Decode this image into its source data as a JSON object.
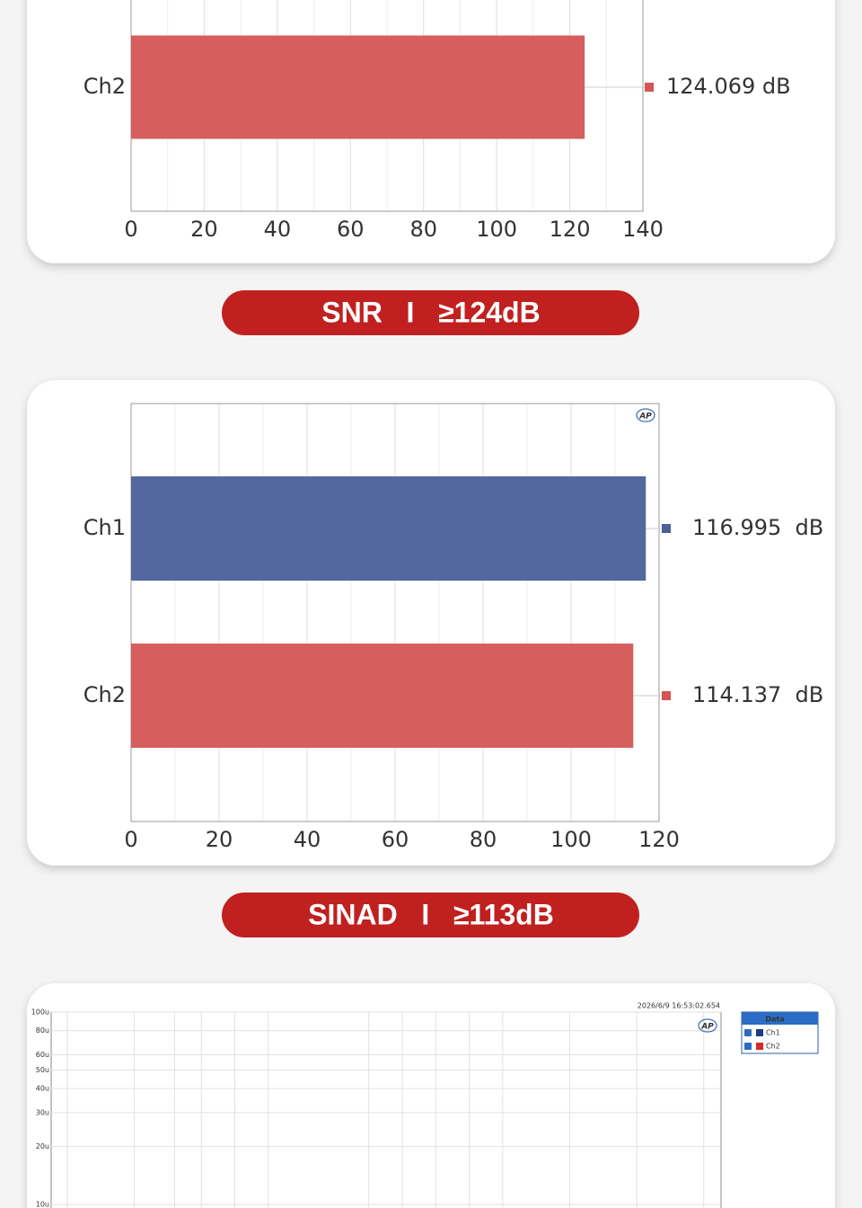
{
  "chart_data": [
    {
      "type": "bar",
      "orientation": "horizontal",
      "categories": [
        "Ch2"
      ],
      "values": [
        124.069
      ],
      "value_labels": [
        "124.069 dB"
      ],
      "colors": [
        "#d45553"
      ],
      "xlim": [
        0,
        140
      ],
      "xticks": [
        0,
        20,
        40,
        60,
        80,
        100,
        120,
        140
      ],
      "grid": true
    },
    {
      "type": "bar",
      "orientation": "horizontal",
      "logo": "AP",
      "categories": [
        "Ch1",
        "Ch2"
      ],
      "values": [
        116.995,
        114.137
      ],
      "value_labels": [
        "116.995  dB",
        "114.137  dB"
      ],
      "colors": [
        "#4a6099",
        "#d45553"
      ],
      "xlim": [
        0,
        120
      ],
      "xticks": [
        0,
        20,
        40,
        60,
        80,
        100,
        120
      ],
      "grid": true
    },
    {
      "type": "line",
      "logo": "AP",
      "timestamp": "2026/6/9 16:53:02.654",
      "legend_title": "Data",
      "log_scale": true,
      "x": [],
      "series": [
        {
          "name": "Ch1",
          "color": "#1f3a8a",
          "values": []
        },
        {
          "name": "Ch2",
          "color": "#d42a2a",
          "values": []
        }
      ],
      "ylim": [
        1e-05,
        0.0001
      ],
      "yticks": [
        {
          "value": 0.0001,
          "label": "100u"
        },
        {
          "value": 8e-05,
          "label": "80u"
        },
        {
          "value": 6e-05,
          "label": "60u"
        },
        {
          "value": 5e-05,
          "label": "50u"
        },
        {
          "value": 4e-05,
          "label": "40u"
        },
        {
          "value": 3e-05,
          "label": "30u"
        },
        {
          "value": 2e-05,
          "label": "20u"
        },
        {
          "value": 1e-05,
          "label": "10u"
        }
      ],
      "grid": true
    }
  ],
  "badges": [
    "SNR   I   ≥124dB",
    "SINAD   I   ≥113dB"
  ]
}
